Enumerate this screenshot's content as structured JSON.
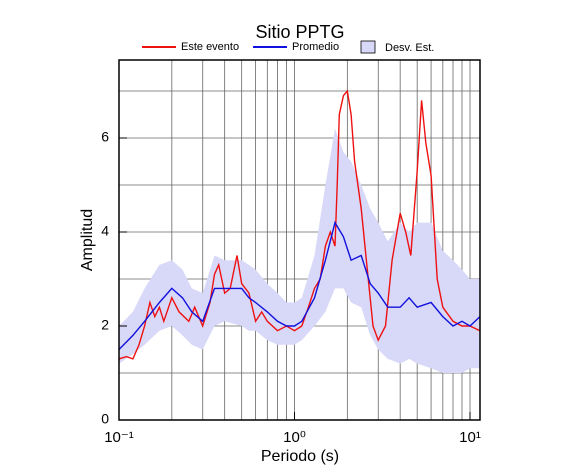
{
  "chart_data": {
    "type": "line",
    "title": "Sitio PPTG",
    "xlabel": "Periodo (s)",
    "ylabel": "Amplitud",
    "xscale": "log",
    "grid": true,
    "xlim": [
      0.1,
      11.4
    ],
    "ylim": [
      0,
      7.66
    ],
    "xticks": [
      {
        "value": 0.1,
        "label": "10⁻¹"
      },
      {
        "value": 1,
        "label": "10⁰"
      },
      {
        "value": 10,
        "label": "10¹"
      }
    ],
    "xminor_ticks": [
      0.2,
      0.3,
      0.4,
      0.5,
      0.6,
      0.7,
      0.8,
      0.9,
      2,
      3,
      4,
      5,
      6,
      7,
      8,
      9
    ],
    "yticks": [
      0,
      2,
      4,
      6
    ],
    "yminor_ticks": [
      1,
      3,
      5,
      7
    ],
    "series": [
      {
        "name": "Desv. Est.",
        "kind": "band",
        "color": "#d8d8f8",
        "x": [
          0.1,
          0.12,
          0.14,
          0.17,
          0.2,
          0.23,
          0.26,
          0.3,
          0.35,
          0.4,
          0.5,
          0.55,
          0.6,
          0.7,
          0.8,
          0.9,
          1.0,
          1.1,
          1.3,
          1.5,
          1.7,
          1.9,
          2.1,
          2.4,
          2.7,
          3,
          3.4,
          4,
          4.5,
          5,
          6,
          7,
          8,
          9,
          10,
          11.4
        ],
        "lower": [
          1.2,
          1.4,
          1.6,
          1.9,
          2.0,
          1.8,
          1.6,
          1.5,
          2.0,
          2.1,
          2.0,
          1.9,
          1.9,
          1.7,
          1.6,
          1.6,
          1.6,
          1.7,
          2.0,
          2.3,
          2.8,
          2.8,
          2.5,
          2.4,
          1.8,
          1.5,
          1.3,
          1.2,
          1.3,
          1.2,
          1.1,
          1.0,
          1.0,
          1.0,
          1.1,
          1.1
        ],
        "upper": [
          2.0,
          2.3,
          2.8,
          3.3,
          3.4,
          3.2,
          2.8,
          2.7,
          3.5,
          3.4,
          3.4,
          3.3,
          3.2,
          2.9,
          2.7,
          2.5,
          2.5,
          2.6,
          3.5,
          5.0,
          6.2,
          5.7,
          5.5,
          5.0,
          4.5,
          4.2,
          3.8,
          4.2,
          4.0,
          4.2,
          4.2,
          3.6,
          3.4,
          3.2,
          3.0,
          3.0
        ]
      },
      {
        "name": "Este evento",
        "kind": "line",
        "color": "#ee1111",
        "x": [
          0.1,
          0.11,
          0.12,
          0.13,
          0.14,
          0.15,
          0.16,
          0.17,
          0.18,
          0.2,
          0.22,
          0.25,
          0.27,
          0.3,
          0.33,
          0.35,
          0.37,
          0.4,
          0.43,
          0.47,
          0.5,
          0.55,
          0.6,
          0.65,
          0.7,
          0.8,
          0.9,
          1.0,
          1.1,
          1.2,
          1.3,
          1.4,
          1.5,
          1.6,
          1.7,
          1.75,
          1.8,
          1.9,
          2.0,
          2.1,
          2.2,
          2.4,
          2.6,
          2.8,
          3.0,
          3.3,
          3.6,
          4.0,
          4.3,
          4.6,
          5.0,
          5.3,
          5.6,
          6.0,
          6.5,
          7.0,
          8,
          9,
          10,
          11.4
        ],
        "values": [
          1.3,
          1.35,
          1.3,
          1.6,
          2.0,
          2.5,
          2.2,
          2.4,
          2.1,
          2.6,
          2.3,
          2.1,
          2.4,
          2.0,
          2.5,
          3.1,
          3.3,
          2.7,
          2.8,
          3.5,
          2.9,
          2.7,
          2.1,
          2.3,
          2.1,
          1.9,
          2.0,
          1.9,
          2.0,
          2.4,
          2.8,
          3.0,
          3.7,
          4.0,
          3.7,
          5.0,
          6.5,
          6.9,
          7.0,
          6.5,
          5.5,
          4.5,
          3.2,
          2.0,
          1.7,
          2.0,
          3.4,
          4.4,
          4.0,
          3.5,
          5.3,
          6.8,
          5.9,
          5.2,
          3.0,
          2.4,
          2.1,
          2.0,
          2.0,
          1.9
        ]
      },
      {
        "name": "Promedio",
        "kind": "line",
        "color": "#1111dd",
        "x": [
          0.1,
          0.12,
          0.14,
          0.17,
          0.2,
          0.23,
          0.26,
          0.3,
          0.35,
          0.4,
          0.5,
          0.55,
          0.6,
          0.7,
          0.8,
          0.9,
          1.0,
          1.1,
          1.3,
          1.5,
          1.7,
          1.9,
          2.1,
          2.4,
          2.7,
          3,
          3.4,
          4,
          4.5,
          5,
          6,
          7,
          8,
          9,
          10,
          11.4
        ],
        "values": [
          1.5,
          1.8,
          2.1,
          2.5,
          2.8,
          2.6,
          2.3,
          2.1,
          2.8,
          2.8,
          2.8,
          2.6,
          2.5,
          2.3,
          2.1,
          2.0,
          2.0,
          2.1,
          2.6,
          3.4,
          4.2,
          3.9,
          3.4,
          3.5,
          2.9,
          2.7,
          2.4,
          2.4,
          2.6,
          2.4,
          2.5,
          2.2,
          2.0,
          2.1,
          2.0,
          2.2
        ]
      }
    ]
  }
}
